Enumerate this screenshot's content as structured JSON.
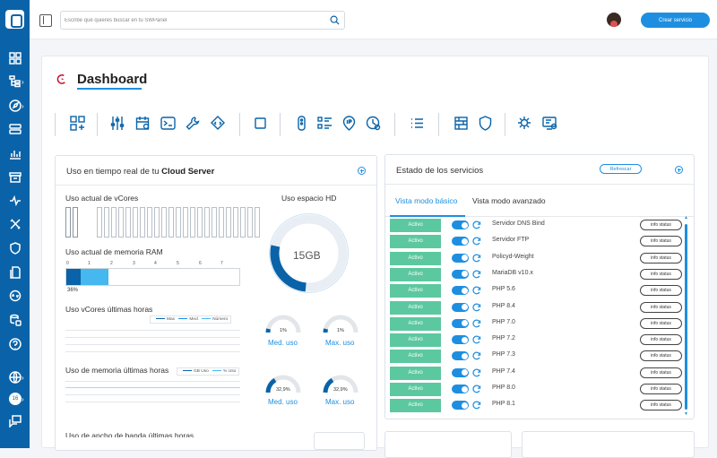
{
  "search": {
    "placeholder": "Escribe qué quieres buscar en tu SWPanel"
  },
  "header": {
    "create_label": "Crear servicio"
  },
  "page": {
    "title": "Dashboard"
  },
  "usage_card": {
    "title_prefix": "Uso en tiempo real de tu ",
    "title_bold": "Cloud Server",
    "vcores_label": "Uso actual de vCores",
    "ram_label": "Uso actual de memoria RAM",
    "ram_scale": [
      "0",
      "1",
      "2",
      "3",
      "4",
      "5",
      "6",
      "7"
    ],
    "ram_percent": "36%",
    "ram_used_fraction": 0.36,
    "vcores_hours_label": "Uso vCores últimas horas",
    "vcores_legend": [
      "Max",
      "Med",
      "Número"
    ],
    "mem_hours_label": "Uso de memoria últimas horas",
    "mem_legend": [
      "GB Uso",
      "% Uso"
    ],
    "bandwidth_label": "Uso de ancho de banda últimas horas",
    "hd_label": "Uso espacio HD",
    "hd_value": "15GB",
    "gauge_cpu_med": "1%",
    "gauge_cpu_max": "1%",
    "gauge_mem_med": "32,9%",
    "gauge_mem_max": "32,9%",
    "med_label": "Med. uso",
    "max_label": "Max. uso"
  },
  "services_card": {
    "title": "Estado de los servicios",
    "refresh_label": "Refrescar",
    "tab_basic": "Vista modo básico",
    "tab_advanced": "Vista modo avanzado",
    "status_label": "Activo",
    "info_label": "info status",
    "services": [
      "Servidor DNS Bind",
      "Servidor FTP",
      "Policyd-Weight",
      "MariaDB v10.x",
      "PHP 5.6",
      "PHP 8.4",
      "PHP 7.0",
      "PHP 7.2",
      "PHP 7.3",
      "PHP 7.4",
      "PHP 8.0",
      "PHP 8.1"
    ]
  },
  "colors": {
    "primary": "#0a63a8",
    "accent": "#1e8fe0",
    "status_green": "#5cc8a0",
    "ram_light": "#45b8f0"
  }
}
